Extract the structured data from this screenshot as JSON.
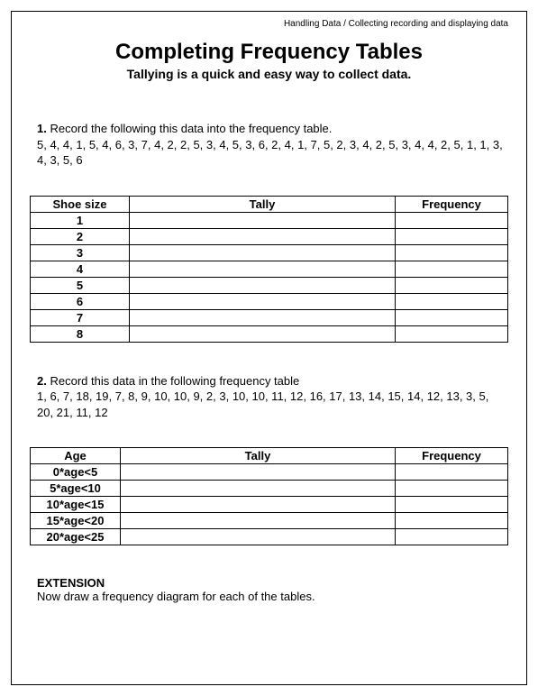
{
  "breadcrumb": "Handling Data / Collecting recording and displaying data",
  "title": "Completing Frequency Tables",
  "subtitle": "Tallying is a quick and easy way to collect data.",
  "q1": {
    "num": "1.",
    "prompt": "Record the following this data into the frequency table.",
    "data": "5, 4, 4, 1, 5, 4, 6, 3, 7, 4, 2, 2, 5, 3, 4, 5, 3, 6, 2, 4, 1, 7, 5, 2, 3, 4, 2, 5, 3, 4, 4, 2, 5, 1, 1, 3, 4, 3, 5, 6"
  },
  "table1": {
    "headers": {
      "c1": "Shoe size",
      "c2": "Tally",
      "c3": "Frequency"
    },
    "rows": [
      "1",
      "2",
      "3",
      "4",
      "5",
      "6",
      "7",
      "8"
    ],
    "col_widths": {
      "c1": 110,
      "c2": 320,
      "c3": 125
    }
  },
  "q2": {
    "num": "2.",
    "prompt": "Record this data in the following frequency table",
    "data": "1, 6, 7, 18, 19, 7, 8, 9, 10, 10, 9, 2, 3, 10, 10, 11, 12, 16, 17, 13, 14, 15, 14, 12, 13, 3, 5, 20, 21, 11, 12"
  },
  "table2": {
    "headers": {
      "c1": "Age",
      "c2": "Tally",
      "c3": "Frequency"
    },
    "rows": [
      "0*age<5",
      "5*age<10",
      "10*age<15",
      "15*age<20",
      "20*age<25"
    ],
    "col_widths": {
      "c1": 100,
      "c2": 330,
      "c3": 125
    }
  },
  "extension": {
    "heading": "EXTENSION",
    "text": "Now draw a frequency diagram for each of the tables."
  },
  "colors": {
    "text": "#000000",
    "border": "#000000",
    "background": "#ffffff"
  }
}
